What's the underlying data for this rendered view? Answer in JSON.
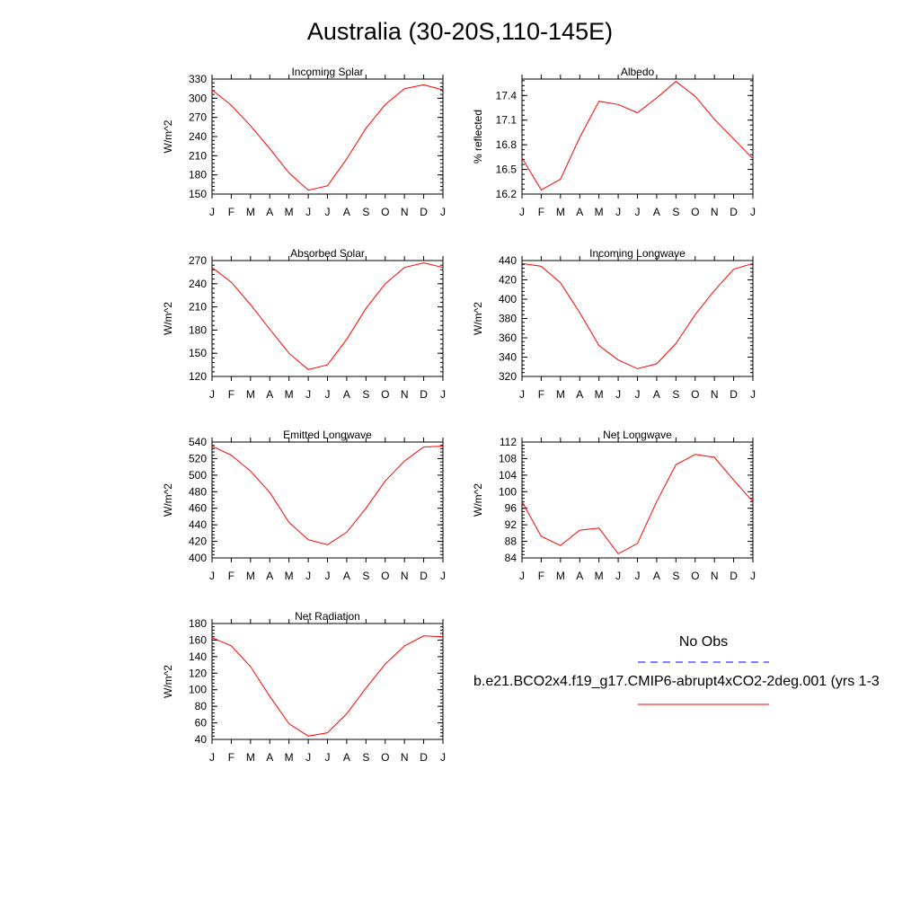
{
  "title": "Australia (30-20S,110-145E)",
  "month_labels": [
    "J",
    "F",
    "M",
    "A",
    "M",
    "J",
    "J",
    "A",
    "S",
    "O",
    "N",
    "D",
    "J"
  ],
  "colors": {
    "series": "#ff0000",
    "obs": "#0000ff",
    "axis": "#000000"
  },
  "legend": {
    "obs_label": "No Obs",
    "case_label": "b.e21.BCO2x4.f19_g17.CMIP6-abrupt4xCO2-2deg.001 (yrs 1-3"
  },
  "chart_data": [
    {
      "type": "line",
      "title": "Incoming Solar",
      "ylabel": "W/m^2",
      "ylim": [
        150,
        330
      ],
      "yticks": [
        150,
        180,
        210,
        240,
        270,
        300,
        330
      ],
      "categories": [
        "J",
        "F",
        "M",
        "A",
        "M",
        "J",
        "J",
        "A",
        "S",
        "O",
        "N",
        "D",
        "J"
      ],
      "series": [
        {
          "values": [
            313,
            289,
            257,
            221,
            183,
            156,
            163,
            205,
            253,
            290,
            315,
            321,
            313
          ]
        }
      ]
    },
    {
      "type": "line",
      "title": "Albedo",
      "ylabel": "% reflected",
      "ylim": [
        16.2,
        17.6
      ],
      "yticks": [
        16.2,
        16.5,
        16.8,
        17.1,
        17.4
      ],
      "categories": [
        "J",
        "F",
        "M",
        "A",
        "M",
        "J",
        "J",
        "A",
        "S",
        "O",
        "N",
        "D",
        "J"
      ],
      "series": [
        {
          "values": [
            16.64,
            16.25,
            16.38,
            16.89,
            17.33,
            17.29,
            17.19,
            17.37,
            17.57,
            17.39,
            17.11,
            16.87,
            16.63
          ]
        }
      ]
    },
    {
      "type": "line",
      "title": "Absorbed Solar",
      "ylabel": "W/m^2",
      "ylim": [
        120,
        270
      ],
      "yticks": [
        120,
        150,
        180,
        210,
        240,
        270
      ],
      "categories": [
        "J",
        "F",
        "M",
        "A",
        "M",
        "J",
        "J",
        "A",
        "S",
        "O",
        "N",
        "D",
        "J"
      ],
      "series": [
        {
          "values": [
            261,
            242,
            213,
            181,
            150,
            129,
            135,
            168,
            208,
            240,
            261,
            267,
            261
          ]
        }
      ]
    },
    {
      "type": "line",
      "title": "Incoming Longwave",
      "ylabel": "W/m^2",
      "ylim": [
        320,
        440
      ],
      "yticks": [
        320,
        340,
        360,
        380,
        400,
        420,
        440
      ],
      "categories": [
        "J",
        "F",
        "M",
        "A",
        "M",
        "J",
        "J",
        "A",
        "S",
        "O",
        "N",
        "D",
        "J"
      ],
      "series": [
        {
          "values": [
            437,
            434,
            417,
            386,
            352,
            337,
            328,
            333,
            354,
            384,
            409,
            431,
            437
          ]
        }
      ]
    },
    {
      "type": "line",
      "title": "Emitted Longwave",
      "ylabel": "W/m^2",
      "ylim": [
        400,
        540
      ],
      "yticks": [
        400,
        420,
        440,
        460,
        480,
        500,
        520,
        540
      ],
      "categories": [
        "J",
        "F",
        "M",
        "A",
        "M",
        "J",
        "J",
        "A",
        "S",
        "O",
        "N",
        "D",
        "J"
      ],
      "series": [
        {
          "values": [
            535,
            524,
            505,
            479,
            443,
            422,
            416,
            431,
            460,
            493,
            517,
            534,
            535
          ]
        }
      ]
    },
    {
      "type": "line",
      "title": "Net Longwave",
      "ylabel": "W/m^2",
      "ylim": [
        84,
        112
      ],
      "yticks": [
        84,
        88,
        92,
        96,
        100,
        104,
        108,
        112
      ],
      "categories": [
        "J",
        "F",
        "M",
        "A",
        "M",
        "J",
        "J",
        "A",
        "S",
        "O",
        "N",
        "D",
        "J"
      ],
      "series": [
        {
          "values": [
            97.6,
            89.2,
            87.0,
            90.7,
            91.2,
            85.0,
            87.5,
            97.6,
            106.5,
            109.0,
            108.3,
            102.8,
            97.6
          ]
        }
      ]
    },
    {
      "type": "line",
      "title": "Net Radiation",
      "ylabel": "W/m^2",
      "ylim": [
        40,
        180
      ],
      "yticks": [
        40,
        60,
        80,
        100,
        120,
        140,
        160,
        180
      ],
      "categories": [
        "J",
        "F",
        "M",
        "A",
        "M",
        "J",
        "J",
        "A",
        "S",
        "O",
        "N",
        "D",
        "J"
      ],
      "series": [
        {
          "values": [
            163,
            153,
            128,
            92,
            59,
            44,
            48,
            71,
            102,
            131,
            153,
            165,
            164
          ]
        }
      ]
    }
  ]
}
